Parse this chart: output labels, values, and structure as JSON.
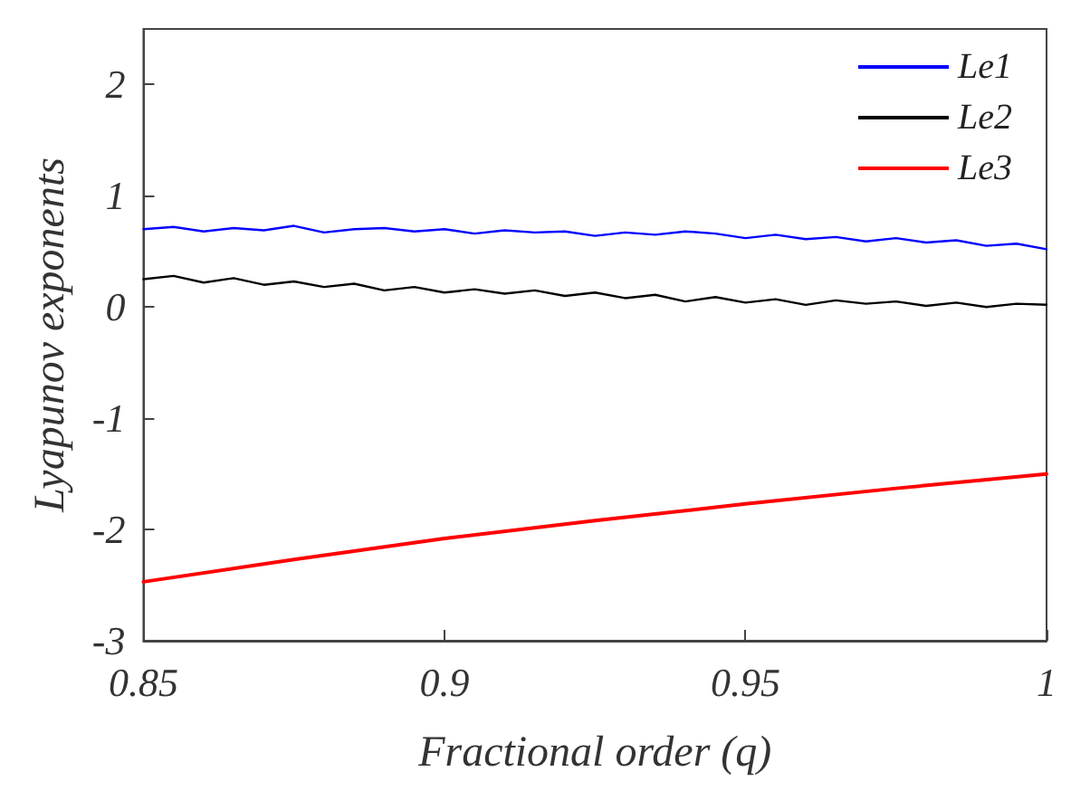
{
  "chart_data": {
    "type": "line",
    "xlabel": "Fractional order (q)",
    "ylabel": "Lyapunov exponents",
    "xlim": [
      0.85,
      1
    ],
    "xticks": [
      0.85,
      0.9,
      0.95,
      1
    ],
    "ylim": [
      -3,
      2.5
    ],
    "yticks": [
      -3,
      -2,
      -1,
      0,
      1,
      2
    ],
    "grid": false,
    "legend": "top right",
    "marker": "none",
    "line_style": "solid",
    "x": [
      0.85,
      0.855,
      0.86,
      0.865,
      0.87,
      0.875,
      0.88,
      0.885,
      0.89,
      0.895,
      0.9,
      0.905,
      0.91,
      0.915,
      0.92,
      0.925,
      0.93,
      0.935,
      0.94,
      0.945,
      0.95,
      0.955,
      0.96,
      0.965,
      0.97,
      0.975,
      0.98,
      0.985,
      0.99,
      0.995,
      1
    ],
    "series": [
      {
        "name": "Le1",
        "color": "#0000ff",
        "values": [
          0.7,
          0.72,
          0.68,
          0.71,
          0.69,
          0.73,
          0.67,
          0.7,
          0.71,
          0.68,
          0.7,
          0.66,
          0.69,
          0.67,
          0.68,
          0.64,
          0.67,
          0.65,
          0.68,
          0.66,
          0.62,
          0.65,
          0.61,
          0.63,
          0.59,
          0.62,
          0.58,
          0.6,
          0.55,
          0.57,
          0.52
        ]
      },
      {
        "name": "Le2",
        "color": "#000000",
        "values": [
          0.25,
          0.28,
          0.22,
          0.26,
          0.2,
          0.23,
          0.18,
          0.21,
          0.15,
          0.18,
          0.13,
          0.16,
          0.12,
          0.15,
          0.1,
          0.13,
          0.08,
          0.11,
          0.05,
          0.09,
          0.04,
          0.07,
          0.02,
          0.06,
          0.03,
          0.05,
          0.01,
          0.04,
          0.0,
          0.03,
          0.02
        ]
      },
      {
        "name": "Le3",
        "color": "#ff0000",
        "x": [
          0.85,
          0.875,
          0.9,
          0.925,
          0.95,
          0.975,
          1
        ],
        "values": [
          -2.47,
          -2.27,
          -2.08,
          -1.92,
          -1.77,
          -1.63,
          -1.5
        ]
      }
    ]
  }
}
